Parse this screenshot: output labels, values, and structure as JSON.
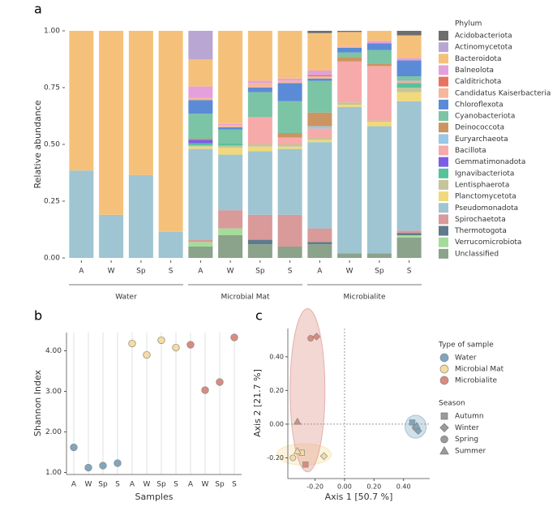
{
  "chart_data": [
    {
      "type": "stacked_bar",
      "panel": "a",
      "y_label": "Relative abundance",
      "legend_title": "Phylum",
      "categories": [
        "A",
        "W",
        "Sp",
        "S",
        "A",
        "W",
        "Sp",
        "S",
        "A",
        "W",
        "Sp",
        "S"
      ],
      "groups": [
        "Water",
        "Microbial Mat",
        "Microbialite"
      ],
      "ylim": [
        0,
        1
      ],
      "yticks": [
        {
          "value": 0,
          "label": "0.00"
        },
        {
          "value": 0.25,
          "label": "0.25"
        },
        {
          "value": 0.5,
          "label": "0.50"
        },
        {
          "value": 0.75,
          "label": "0.75"
        },
        {
          "value": 1,
          "label": "1.00"
        }
      ],
      "series": [
        {
          "name": "Acidobacteriota",
          "color": "#6e6e6e",
          "values": [
            0,
            0,
            0,
            0,
            0,
            0,
            0,
            0,
            0.01,
            0.005,
            0,
            0.02
          ]
        },
        {
          "name": "Actinomycetota",
          "color": "#b9a6d3",
          "values": [
            0,
            0,
            0,
            0,
            0.125,
            0,
            0,
            0,
            0,
            0,
            0,
            0
          ]
        },
        {
          "name": "Bacteroidota",
          "color": "#f5c17a",
          "values": [
            0.615,
            0.81,
            0.635,
            0.885,
            0.12,
            0.41,
            0.22,
            0.21,
            0.165,
            0.06,
            0.045,
            0.1
          ]
        },
        {
          "name": "Balneolota",
          "color": "#e3a0dc",
          "values": [
            0,
            0,
            0,
            0,
            0.05,
            0.005,
            0.01,
            0.01,
            0.02,
            0,
            0.01,
            0.01
          ]
        },
        {
          "name": "Calditrichota",
          "color": "#e8735e",
          "values": [
            0,
            0,
            0,
            0,
            0,
            0,
            0,
            0,
            0.005,
            0,
            0,
            0
          ]
        },
        {
          "name": "Candidatus Kaiserbacteria",
          "color": "#f4b89a",
          "values": [
            0,
            0,
            0,
            0,
            0.01,
            0.01,
            0.02,
            0.01,
            0.01,
            0.01,
            0,
            0
          ]
        },
        {
          "name": "Chloroflexota",
          "color": "#5b8bd6",
          "values": [
            0,
            0,
            0,
            0,
            0.06,
            0.01,
            0.02,
            0.08,
            0.01,
            0.02,
            0.03,
            0.07
          ]
        },
        {
          "name": "Cyanobacteriota",
          "color": "#7cc4a6",
          "values": [
            0,
            0,
            0,
            0,
            0.11,
            0.06,
            0.11,
            0.14,
            0.14,
            0.02,
            0.06,
            0.02
          ]
        },
        {
          "name": "Deinococcota",
          "color": "#cc9460",
          "values": [
            0,
            0,
            0,
            0,
            0.005,
            0,
            0,
            0.02,
            0.06,
            0.02,
            0.01,
            0
          ]
        },
        {
          "name": "Euryarchaeota",
          "color": "#9ac8e6",
          "values": [
            0,
            0,
            0,
            0,
            0,
            0,
            0,
            0,
            0.01,
            0,
            0,
            0
          ]
        },
        {
          "name": "Bacillota",
          "color": "#f7aaaa",
          "values": [
            0,
            0,
            0,
            0,
            0,
            0,
            0.12,
            0.03,
            0.04,
            0.18,
            0.24,
            0.01
          ]
        },
        {
          "name": "Gemmatimonadota",
          "color": "#7b5ee6",
          "values": [
            0,
            0,
            0,
            0,
            0.015,
            0,
            0,
            0,
            0,
            0,
            0,
            0
          ]
        },
        {
          "name": "Ignavibacteriota",
          "color": "#55c29a",
          "values": [
            0,
            0,
            0,
            0,
            0.01,
            0.01,
            0,
            0,
            0,
            0,
            0,
            0.02
          ]
        },
        {
          "name": "Lentisphaerota",
          "color": "#c5c49a",
          "values": [
            0,
            0,
            0,
            0,
            0.005,
            0.01,
            0.01,
            0.01,
            0.01,
            0.01,
            0.005,
            0.02
          ]
        },
        {
          "name": "Planctomycetota",
          "color": "#f0d97a",
          "values": [
            0,
            0,
            0,
            0,
            0.01,
            0.03,
            0.02,
            0.01,
            0.01,
            0.01,
            0.02,
            0.04
          ]
        },
        {
          "name": "Pseudomonadota",
          "color": "#9fc5d2",
          "values": [
            0.385,
            0.19,
            0.365,
            0.115,
            0.4,
            0.245,
            0.28,
            0.29,
            0.38,
            0.645,
            0.56,
            0.57
          ]
        },
        {
          "name": "Spirochaetota",
          "color": "#d99a9a",
          "values": [
            0,
            0,
            0,
            0,
            0.01,
            0.08,
            0.11,
            0.14,
            0.06,
            0,
            0,
            0.01
          ]
        },
        {
          "name": "Thermotogota",
          "color": "#5f7a8c",
          "values": [
            0,
            0,
            0,
            0,
            0,
            0,
            0.02,
            0,
            0.01,
            0,
            0,
            0.01
          ]
        },
        {
          "name": "Verrucomicrobiota",
          "color": "#a6dc9a",
          "values": [
            0,
            0,
            0,
            0,
            0.02,
            0.03,
            0,
            0,
            0,
            0,
            0,
            0.01
          ]
        },
        {
          "name": "Unclassified",
          "color": "#8aa38a",
          "values": [
            0,
            0,
            0,
            0,
            0.05,
            0.1,
            0.06,
            0.05,
            0.06,
            0.02,
            0.02,
            0.09
          ]
        }
      ]
    },
    {
      "type": "strip",
      "panel": "b",
      "x_label": "Samples",
      "y_label": "Shannon Index",
      "grid": true,
      "categories": [
        "A",
        "W",
        "Sp",
        "S",
        "A",
        "W",
        "Sp",
        "S",
        "A",
        "W",
        "Sp",
        "S"
      ],
      "values": [
        1.62,
        1.12,
        1.17,
        1.23,
        4.18,
        3.9,
        4.26,
        4.08,
        4.15,
        3.03,
        3.23,
        4.33
      ],
      "colors": [
        "#7fa6bf",
        "#7fa6bf",
        "#7fa6bf",
        "#7fa6bf",
        "#f5dca0",
        "#f5dca0",
        "#f5dca0",
        "#f5dca0",
        "#d98b80",
        "#d98b80",
        "#d98b80",
        "#d98b80"
      ],
      "ylim": [
        0.95,
        4.45
      ],
      "yticks": [
        {
          "value": 1,
          "label": "1.00"
        },
        {
          "value": 2,
          "label": "2.00"
        },
        {
          "value": 3,
          "label": "3.00"
        },
        {
          "value": 4,
          "label": "4.00"
        }
      ]
    },
    {
      "type": "scatter",
      "panel": "c",
      "x_label": "Axis 1 [50.7 %]",
      "y_label": "Axis 2 [21.7 %]",
      "zero_lines": true,
      "legend_title": "Type of sample",
      "season_title": "Season",
      "seasons": [
        "Autumn",
        "Winter",
        "Spring",
        "Summer"
      ],
      "season_markers": [
        "square",
        "diamond",
        "circle",
        "triangle"
      ],
      "xlim": [
        -0.385,
        0.578
      ],
      "ylim": [
        -0.323,
        0.568
      ],
      "xticks": [
        {
          "value": -0.2,
          "label": "-0.20"
        },
        {
          "value": 0,
          "label": "0.00"
        },
        {
          "value": 0.2,
          "label": "0.20"
        },
        {
          "value": 0.4,
          "label": "0.40"
        }
      ],
      "yticks": [
        {
          "value": -0.2,
          "label": "-0.20"
        },
        {
          "value": 0,
          "label": "0.00"
        },
        {
          "value": 0.2,
          "label": "0.20"
        },
        {
          "value": 0.4,
          "label": "0.40"
        }
      ],
      "series": [
        {
          "name": "Water",
          "color": "#7fa6bf",
          "x": [
            0.46,
            0.5,
            0.48,
            0.49
          ],
          "y": [
            0.01,
            -0.04,
            -0.02,
            -0.01
          ]
        },
        {
          "name": "Microbial Mat",
          "color": "#f5dca0",
          "x": [
            -0.29,
            -0.14,
            -0.35,
            -0.32
          ],
          "y": [
            -0.17,
            -0.19,
            -0.2,
            -0.16
          ]
        },
        {
          "name": "Microbialite",
          "color": "#d98b80",
          "x": [
            -0.265,
            -0.19,
            -0.23,
            -0.32
          ],
          "y": [
            -0.24,
            0.52,
            0.51,
            0.015
          ]
        }
      ]
    }
  ]
}
